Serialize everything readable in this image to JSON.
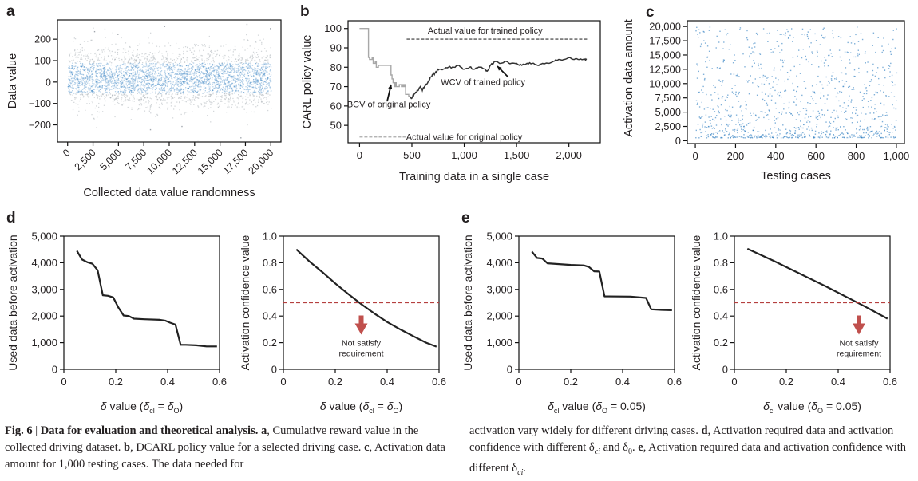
{
  "panels": {
    "a": {
      "label": "a"
    },
    "b": {
      "label": "b"
    },
    "c": {
      "label": "c"
    },
    "d": {
      "label": "d"
    },
    "e": {
      "label": "e"
    }
  },
  "caption": {
    "fig": "Fig. 6",
    "sep": " | ",
    "title": "Data for evaluation and theoretical analysis.",
    "a_label": "a",
    "a_text": ", Cumulative reward value in the collected driving dataset.",
    "b_label": "b",
    "b_text": ", DCARL policy value for a selected driving case.",
    "c_label": "c",
    "c_text": ", Activation data amount for 1,000 testing cases. The data needed for",
    "c_text2": "activation vary widely for different driving cases.",
    "d_label": "d",
    "d_text": ", Activation required data and activation confidence with different δ",
    "d_sub1": "ci",
    "d_and": " and δ",
    "d_sub2": "0",
    "d_end": ".",
    "e_label": "e",
    "e_text": ", Activation required data and activation confidence with different δ",
    "e_sub": "ci",
    "e_end": "."
  },
  "colors": {
    "scatter_blue": "#2a7bbf",
    "scatter_grey": "#a0a6ad",
    "line_dark": "#222222",
    "line_grey": "#a8a8a8",
    "threshold_red": "#b5403f",
    "arrow_red": "#c0504d"
  },
  "chart_data": [
    {
      "id": "a",
      "type": "scatter",
      "title": "",
      "xlabel": "Collected data value randomness",
      "ylabel": "Data value",
      "xlim": [
        -1000,
        21000
      ],
      "ylim": [
        -280,
        290
      ],
      "xticks": [
        0,
        2500,
        5000,
        7500,
        10000,
        12500,
        15000,
        17500,
        20000
      ],
      "xtick_labels": [
        "0",
        "2,500",
        "5,000",
        "7,500",
        "10,000",
        "12,500",
        "15,000",
        "17,500",
        "20,000"
      ],
      "yticks": [
        -200,
        -100,
        0,
        100,
        200
      ],
      "ytick_labels": [
        "−200",
        "−100",
        "0",
        "100",
        "200"
      ],
      "n_points": 20000,
      "distribution": {
        "mean": 20,
        "std": 65,
        "min": -260,
        "max": 270
      },
      "outliers": [
        [
          4900,
          225
        ],
        [
          9500,
          262
        ],
        [
          17600,
          272
        ],
        [
          17000,
          -258
        ],
        [
          8100,
          -220
        ],
        [
          11200,
          -205
        ],
        [
          19900,
          252
        ],
        [
          2600,
          238
        ]
      ]
    },
    {
      "id": "b",
      "type": "line",
      "xlabel": "Training data in a single case",
      "ylabel": "CARL policy value",
      "xlim": [
        -110,
        2300
      ],
      "ylim": [
        41,
        104
      ],
      "xticks": [
        0,
        500,
        1000,
        1500,
        2000
      ],
      "xtick_labels": [
        "0",
        "500",
        "1,000",
        "1,500",
        "2,000"
      ],
      "yticks": [
        50,
        60,
        70,
        80,
        90,
        100
      ],
      "ytick_labels": [
        "50",
        "60",
        "70",
        "80",
        "90",
        "100"
      ],
      "series": [
        {
          "name": "Original policy (grey)",
          "x": [
            0,
            80,
            85,
            95,
            120,
            130,
            150,
            160,
            180,
            190,
            220,
            290,
            300,
            310,
            320,
            330,
            340,
            350,
            380,
            400,
            410,
            420,
            430,
            440,
            470,
            480
          ],
          "values": [
            100,
            100,
            85,
            84,
            85,
            82,
            83,
            80,
            81,
            81,
            81,
            81,
            76,
            74,
            72,
            70,
            72,
            70,
            71,
            70,
            71,
            70,
            71,
            66,
            65,
            65
          ]
        },
        {
          "name": "Trained policy (dark)",
          "x": [
            480,
            500,
            520,
            540,
            560,
            580,
            600,
            620,
            640,
            660,
            680,
            700,
            720,
            740,
            760,
            800,
            850,
            900,
            950,
            1000,
            1050,
            1100,
            1150,
            1200,
            1220,
            1250,
            1300,
            1350,
            1400,
            1450,
            1500,
            1550,
            1600,
            1650,
            1700,
            1750,
            1800,
            1850,
            1900,
            1950,
            2000,
            2050,
            2100,
            2150,
            2170
          ],
          "values": [
            65,
            64,
            66,
            67,
            68,
            70,
            68,
            70,
            71,
            73,
            75,
            76,
            77,
            78,
            79,
            79,
            80,
            80,
            81,
            79,
            80,
            79,
            80,
            79,
            78,
            81,
            83,
            82,
            83,
            82,
            82,
            81,
            82,
            82,
            81,
            82,
            82,
            83,
            84,
            84,
            85,
            84,
            84,
            84,
            84
          ]
        }
      ],
      "reference_lines": [
        {
          "name": "Actual value for trained policy",
          "y": 94.5,
          "x_range": [
            450,
            2180
          ],
          "style": "dashed",
          "color": "dark"
        },
        {
          "name": "Actual value for original policy",
          "y": 44,
          "x_range": [
            0,
            450
          ],
          "style": "dashed",
          "color": "grey"
        }
      ],
      "annotations": [
        {
          "text": "Actual value for trained policy",
          "x": 1200,
          "y": 97.5
        },
        {
          "text": "BCV of original policy",
          "x": 280,
          "y": 61,
          "arrow_to": [
            310,
            71
          ]
        },
        {
          "text": "WCV of trained policy",
          "x": 1180,
          "y": 72.5,
          "arrow_to": [
            1320,
            81.5
          ]
        },
        {
          "text": "Actual value for original policy",
          "x": 1000,
          "y": 44
        }
      ]
    },
    {
      "id": "c",
      "type": "scatter",
      "xlabel": "Testing cases",
      "ylabel": "Activation data amount",
      "xlim": [
        -40,
        1040
      ],
      "ylim": [
        -500,
        21000
      ],
      "xticks": [
        0,
        200,
        400,
        600,
        800,
        1000
      ],
      "xtick_labels": [
        "0",
        "200",
        "400",
        "600",
        "800",
        "1,000"
      ],
      "yticks": [
        0,
        2500,
        5000,
        7500,
        10000,
        12500,
        15000,
        17500,
        20000
      ],
      "ytick_labels": [
        "0",
        "2,500",
        "5,000",
        "7,500",
        "10,000",
        "12,500",
        "15,000",
        "17,500",
        "20,000"
      ],
      "n_points": 1000,
      "distribution": {
        "min": 500,
        "max": 20000,
        "shape": "skewed-low"
      }
    },
    {
      "id": "d-left",
      "type": "line",
      "xlabel": "δ value (δ_cl = δ_O)",
      "ylabel": "Used data before activation",
      "xlim": [
        0,
        0.6
      ],
      "ylim": [
        0,
        5000
      ],
      "xticks": [
        0,
        0.2,
        0.4,
        0.6
      ],
      "xtick_labels": [
        "0",
        "0.2",
        "0.4",
        "0.6"
      ],
      "yticks": [
        0,
        1000,
        2000,
        3000,
        4000,
        5000
      ],
      "ytick_labels": [
        "0",
        "1,000",
        "2,000",
        "3,000",
        "4,000",
        "5,000"
      ],
      "series": [
        {
          "name": "Used data",
          "x": [
            0.05,
            0.07,
            0.09,
            0.11,
            0.13,
            0.15,
            0.17,
            0.19,
            0.21,
            0.23,
            0.25,
            0.27,
            0.31,
            0.37,
            0.39,
            0.41,
            0.43,
            0.45,
            0.47,
            0.51,
            0.55,
            0.59
          ],
          "values": [
            4450,
            4120,
            4020,
            3960,
            3720,
            2780,
            2760,
            2700,
            2320,
            2020,
            2000,
            1900,
            1880,
            1860,
            1830,
            1750,
            1680,
            920,
            920,
            900,
            860,
            860
          ]
        }
      ]
    },
    {
      "id": "d-right",
      "type": "line",
      "xlabel": "δ value (δ_cl = δ_O)",
      "ylabel": "Activation confidence value",
      "xlim": [
        0,
        0.6
      ],
      "ylim": [
        0,
        1.0
      ],
      "xticks": [
        0,
        0.2,
        0.4,
        0.6
      ],
      "xtick_labels": [
        "0",
        "0.2",
        "0.4",
        "0.6"
      ],
      "yticks": [
        0,
        0.2,
        0.4,
        0.6,
        0.8,
        1.0
      ],
      "ytick_labels": [
        "0",
        "0.2",
        "0.4",
        "0.6",
        "0.8",
        "1.0"
      ],
      "series": [
        {
          "name": "Activation confidence",
          "x": [
            0.05,
            0.1,
            0.15,
            0.2,
            0.25,
            0.3,
            0.35,
            0.4,
            0.45,
            0.5,
            0.55,
            0.59
          ],
          "values": [
            0.9,
            0.81,
            0.73,
            0.645,
            0.565,
            0.49,
            0.42,
            0.355,
            0.3,
            0.25,
            0.2,
            0.17
          ]
        }
      ],
      "threshold": {
        "y": 0.5,
        "label": "Not satisfy requirement",
        "label_line1": "Not satisfy",
        "label_line2": "requirement",
        "arrow_x": 0.3
      }
    },
    {
      "id": "e-left",
      "type": "line",
      "xlabel": "δ_cl value (δ_O = 0.05)",
      "ylabel": "Used data before activation",
      "xlim": [
        0,
        0.6
      ],
      "ylim": [
        0,
        5000
      ],
      "xticks": [
        0,
        0.2,
        0.4,
        0.6
      ],
      "xtick_labels": [
        "0",
        "0.2",
        "0.4",
        "0.6"
      ],
      "yticks": [
        0,
        1000,
        2000,
        3000,
        4000,
        5000
      ],
      "ytick_labels": [
        "0",
        "1,000",
        "2,000",
        "3,000",
        "4,000",
        "5,000"
      ],
      "series": [
        {
          "name": "Used data",
          "x": [
            0.05,
            0.07,
            0.09,
            0.11,
            0.2,
            0.25,
            0.27,
            0.29,
            0.31,
            0.33,
            0.43,
            0.49,
            0.51,
            0.55,
            0.59
          ],
          "values": [
            4420,
            4180,
            4160,
            3980,
            3920,
            3900,
            3840,
            3680,
            3670,
            2740,
            2730,
            2680,
            2250,
            2230,
            2220
          ]
        }
      ]
    },
    {
      "id": "e-right",
      "type": "line",
      "xlabel": "δ_cl value (δ_O = 0.05)",
      "ylabel": "Activation confidence value",
      "xlim": [
        0,
        0.6
      ],
      "ylim": [
        0,
        1.0
      ],
      "xticks": [
        0,
        0.2,
        0.4,
        0.6
      ],
      "xtick_labels": [
        "0",
        "0.2",
        "0.4",
        "0.6"
      ],
      "yticks": [
        0,
        0.2,
        0.4,
        0.6,
        0.8,
        1.0
      ],
      "ytick_labels": [
        "0",
        "0.2",
        "0.4",
        "0.6",
        "0.8",
        "1.0"
      ],
      "series": [
        {
          "name": "Activation confidence",
          "x": [
            0.05,
            0.15,
            0.25,
            0.35,
            0.45,
            0.5,
            0.59
          ],
          "values": [
            0.905,
            0.815,
            0.72,
            0.625,
            0.525,
            0.475,
            0.38
          ]
        }
      ],
      "threshold": {
        "y": 0.5,
        "label": "Not satisfy requirement",
        "label_line1": "Not satisfy",
        "label_line2": "requirement",
        "arrow_x": 0.48
      }
    }
  ]
}
